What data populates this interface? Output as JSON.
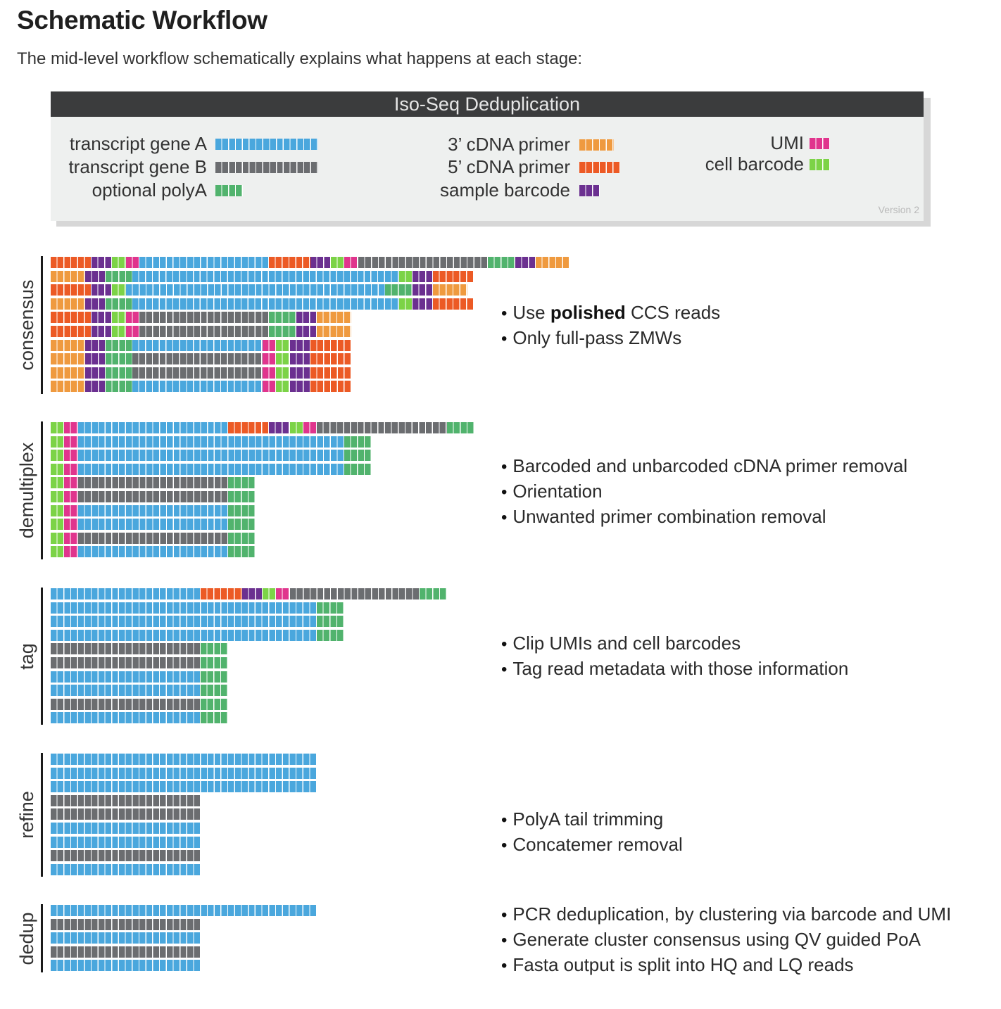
{
  "page": {
    "title": "Schematic Workflow",
    "subtitle": "The mid-level workflow schematically explains what happens at each stage:"
  },
  "legend": {
    "title": "Iso-Seq Deduplication",
    "version": "Version 2",
    "items": [
      {
        "key": "A",
        "label": "transcript gene A",
        "color": "#4aa7dd",
        "units": 15
      },
      {
        "key": "B",
        "label": "transcript gene B",
        "color": "#6b6d70",
        "units": 15
      },
      {
        "key": "P",
        "label": "optional polyA",
        "color": "#51b36d",
        "units": 4
      },
      {
        "key": "T3",
        "label": "3’ cDNA primer",
        "color": "#ef9a3f",
        "units": 5
      },
      {
        "key": "T5",
        "label": "5’ cDNA primer",
        "color": "#ec5a25",
        "units": 6
      },
      {
        "key": "S",
        "label": "sample barcode",
        "color": "#6b3090",
        "units": 3
      },
      {
        "key": "U",
        "label": "UMI",
        "color": "#e0358d",
        "units": 3
      },
      {
        "key": "C",
        "label": "cell barcode",
        "color": "#7cd347",
        "units": 3
      }
    ]
  },
  "stages": [
    {
      "name": "consensus",
      "bullets": [
        {
          "pre": "Use ",
          "bold": "polished",
          "post": " CCS reads"
        },
        {
          "pre": "Only full-pass ZMWs",
          "bold": "",
          "post": ""
        }
      ],
      "reads": [
        [
          [
            "T5",
            6
          ],
          [
            "S",
            3
          ],
          [
            "C",
            2
          ],
          [
            "U",
            2
          ],
          [
            "A",
            19
          ],
          [
            "T5",
            6
          ],
          [
            "S",
            3
          ],
          [
            "C",
            2
          ],
          [
            "U",
            2
          ],
          [
            "B",
            19
          ],
          [
            "P",
            4
          ],
          [
            "S",
            3
          ],
          [
            "T3",
            5
          ]
        ],
        [
          [
            "T3",
            5
          ],
          [
            "S",
            3
          ],
          [
            "P",
            4
          ],
          [
            "A",
            39
          ],
          [
            "C",
            2
          ],
          [
            "S",
            3
          ],
          [
            "T5",
            6
          ]
        ],
        [
          [
            "T5",
            6
          ],
          [
            "S",
            3
          ],
          [
            "C",
            2
          ],
          [
            "A",
            38
          ],
          [
            "P",
            4
          ],
          [
            "S",
            3
          ],
          [
            "T3",
            5
          ]
        ],
        [
          [
            "T3",
            5
          ],
          [
            "S",
            3
          ],
          [
            "P",
            4
          ],
          [
            "A",
            39
          ],
          [
            "C",
            2
          ],
          [
            "S",
            3
          ],
          [
            "T5",
            6
          ]
        ],
        [
          [
            "T5",
            6
          ],
          [
            "S",
            3
          ],
          [
            "C",
            2
          ],
          [
            "U",
            2
          ],
          [
            "B",
            19
          ],
          [
            "P",
            4
          ],
          [
            "S",
            3
          ],
          [
            "T3",
            5
          ]
        ],
        [
          [
            "T5",
            6
          ],
          [
            "S",
            3
          ],
          [
            "C",
            2
          ],
          [
            "U",
            2
          ],
          [
            "B",
            19
          ],
          [
            "P",
            4
          ],
          [
            "S",
            3
          ],
          [
            "T3",
            5
          ]
        ],
        [
          [
            "T3",
            5
          ],
          [
            "S",
            3
          ],
          [
            "P",
            4
          ],
          [
            "A",
            19
          ],
          [
            "U",
            2
          ],
          [
            "C",
            2
          ],
          [
            "S",
            3
          ],
          [
            "T5",
            6
          ]
        ],
        [
          [
            "T3",
            5
          ],
          [
            "S",
            3
          ],
          [
            "P",
            4
          ],
          [
            "B",
            19
          ],
          [
            "U",
            2
          ],
          [
            "C",
            2
          ],
          [
            "S",
            3
          ],
          [
            "T5",
            6
          ]
        ],
        [
          [
            "T3",
            5
          ],
          [
            "S",
            3
          ],
          [
            "P",
            4
          ],
          [
            "B",
            19
          ],
          [
            "U",
            2
          ],
          [
            "C",
            2
          ],
          [
            "S",
            3
          ],
          [
            "T5",
            6
          ]
        ],
        [
          [
            "T3",
            5
          ],
          [
            "S",
            3
          ],
          [
            "P",
            4
          ],
          [
            "A",
            19
          ],
          [
            "U",
            2
          ],
          [
            "C",
            2
          ],
          [
            "S",
            3
          ],
          [
            "T5",
            6
          ]
        ]
      ]
    },
    {
      "name": "demultiplex",
      "bullets": [
        {
          "pre": "Barcoded and unbarcoded cDNA primer removal",
          "bold": "",
          "post": ""
        },
        {
          "pre": "Orientation",
          "bold": "",
          "post": ""
        },
        {
          "pre": "Unwanted primer combination removal",
          "bold": "",
          "post": ""
        }
      ],
      "reads": [
        [
          [
            "C",
            2
          ],
          [
            "U",
            2
          ],
          [
            "A",
            22
          ],
          [
            "T5",
            6
          ],
          [
            "S",
            3
          ],
          [
            "C",
            2
          ],
          [
            "U",
            2
          ],
          [
            "B",
            19
          ],
          [
            "P",
            4
          ]
        ],
        [
          [
            "C",
            2
          ],
          [
            "U",
            2
          ],
          [
            "A",
            39
          ],
          [
            "P",
            4
          ]
        ],
        [
          [
            "C",
            2
          ],
          [
            "U",
            2
          ],
          [
            "A",
            39
          ],
          [
            "P",
            4
          ]
        ],
        [
          [
            "C",
            2
          ],
          [
            "U",
            2
          ],
          [
            "A",
            39
          ],
          [
            "P",
            4
          ]
        ],
        [
          [
            "C",
            2
          ],
          [
            "U",
            2
          ],
          [
            "B",
            22
          ],
          [
            "P",
            4
          ]
        ],
        [
          [
            "C",
            2
          ],
          [
            "U",
            2
          ],
          [
            "B",
            22
          ],
          [
            "P",
            4
          ]
        ],
        [
          [
            "C",
            2
          ],
          [
            "U",
            2
          ],
          [
            "A",
            22
          ],
          [
            "P",
            4
          ]
        ],
        [
          [
            "C",
            2
          ],
          [
            "U",
            2
          ],
          [
            "A",
            22
          ],
          [
            "P",
            4
          ]
        ],
        [
          [
            "C",
            2
          ],
          [
            "U",
            2
          ],
          [
            "B",
            22
          ],
          [
            "P",
            4
          ]
        ],
        [
          [
            "C",
            2
          ],
          [
            "U",
            2
          ],
          [
            "A",
            22
          ],
          [
            "P",
            4
          ]
        ]
      ]
    },
    {
      "name": "tag",
      "bullets": [
        {
          "pre": "Clip UMIs and cell barcodes",
          "bold": "",
          "post": ""
        },
        {
          "pre": "Tag read metadata with those information",
          "bold": "",
          "post": ""
        }
      ],
      "reads": [
        [
          [
            "A",
            22
          ],
          [
            "T5",
            6
          ],
          [
            "S",
            3
          ],
          [
            "C",
            2
          ],
          [
            "U",
            2
          ],
          [
            "B",
            19
          ],
          [
            "P",
            4
          ]
        ],
        [
          [
            "A",
            39
          ],
          [
            "P",
            4
          ]
        ],
        [
          [
            "A",
            39
          ],
          [
            "P",
            4
          ]
        ],
        [
          [
            "A",
            39
          ],
          [
            "P",
            4
          ]
        ],
        [
          [
            "B",
            22
          ],
          [
            "P",
            4
          ]
        ],
        [
          [
            "B",
            22
          ],
          [
            "P",
            4
          ]
        ],
        [
          [
            "A",
            22
          ],
          [
            "P",
            4
          ]
        ],
        [
          [
            "A",
            22
          ],
          [
            "P",
            4
          ]
        ],
        [
          [
            "B",
            22
          ],
          [
            "P",
            4
          ]
        ],
        [
          [
            "A",
            22
          ],
          [
            "P",
            4
          ]
        ]
      ]
    },
    {
      "name": "refine",
      "bullets": [
        {
          "pre": "PolyA tail trimming",
          "bold": "",
          "post": ""
        },
        {
          "pre": "Concatemer removal",
          "bold": "",
          "post": ""
        }
      ],
      "reads": [
        [
          [
            "A",
            39
          ]
        ],
        [
          [
            "A",
            39
          ]
        ],
        [
          [
            "A",
            39
          ]
        ],
        [
          [
            "B",
            22
          ]
        ],
        [
          [
            "B",
            22
          ]
        ],
        [
          [
            "A",
            22
          ]
        ],
        [
          [
            "A",
            22
          ]
        ],
        [
          [
            "B",
            22
          ]
        ],
        [
          [
            "A",
            22
          ]
        ]
      ]
    },
    {
      "name": "dedup",
      "bullets": [
        {
          "pre": "PCR deduplication, by clustering via barcode and UMI",
          "bold": "",
          "post": ""
        },
        {
          "pre": "Generate cluster consensus using QV guided PoA",
          "bold": "",
          "post": ""
        },
        {
          "pre": "Fasta output is split into HQ and LQ reads",
          "bold": "",
          "post": ""
        }
      ],
      "reads": [
        [
          [
            "A",
            39
          ]
        ],
        [
          [
            "B",
            22
          ]
        ],
        [
          [
            "A",
            22
          ]
        ],
        [
          [
            "B",
            22
          ]
        ],
        [
          [
            "A",
            22
          ]
        ]
      ]
    }
  ]
}
